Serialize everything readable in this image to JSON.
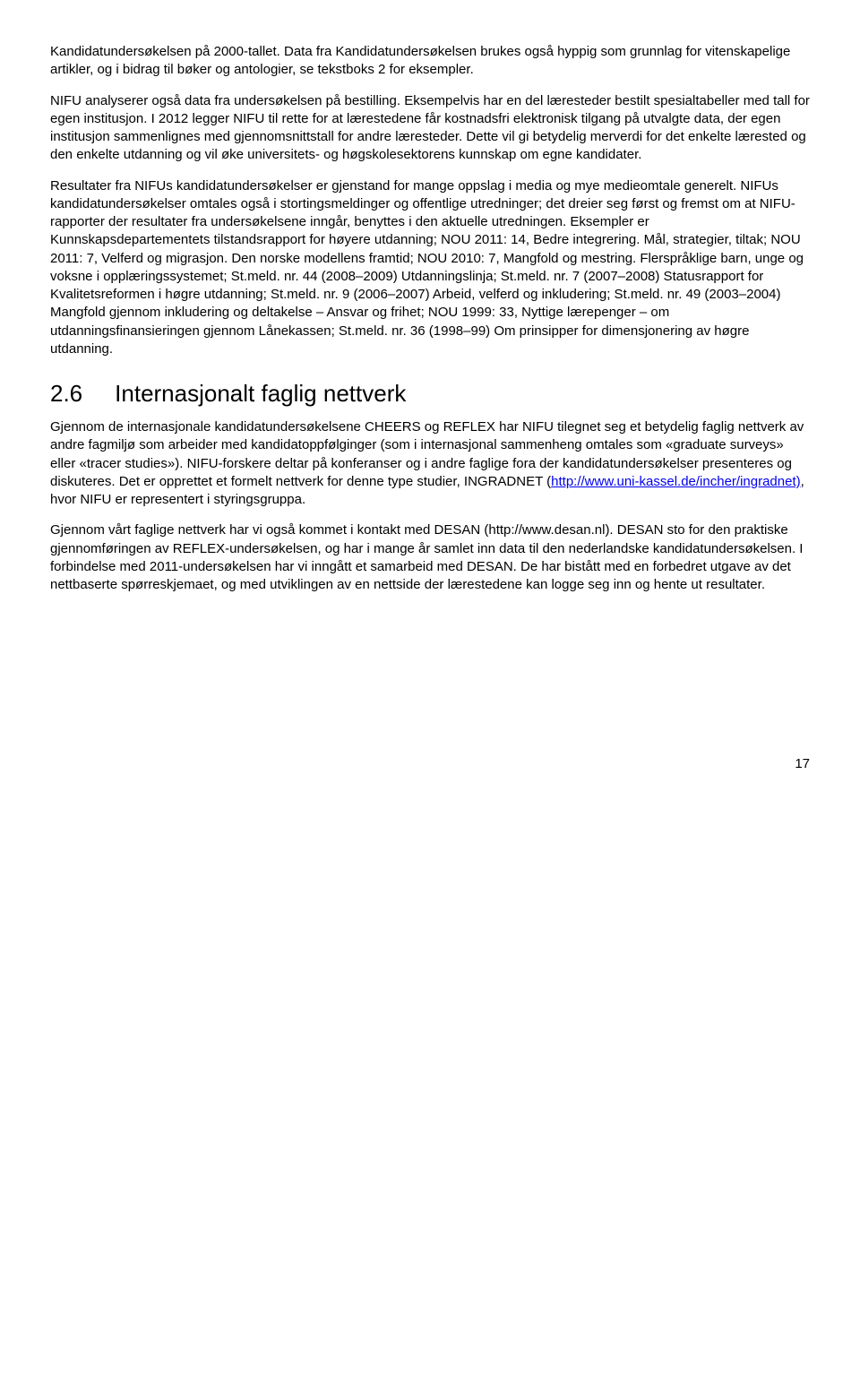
{
  "paragraphs": {
    "p1": "Kandidatundersøkelsen på 2000-tallet. Data fra Kandidatundersøkelsen brukes også hyppig som grunnlag for vitenskapelige artikler, og i bidrag til bøker og antologier, se tekstboks 2 for eksempler.",
    "p2": "NIFU analyserer også data fra undersøkelsen på bestilling. Eksempelvis har en del læresteder bestilt spesialtabeller med tall for egen institusjon. I 2012 legger NIFU til rette for at lærestedene får kostnadsfri elektronisk tilgang på utvalgte data, der egen institusjon sammenlignes med gjennomsnittstall for andre læresteder. Dette vil gi betydelig merverdi for det enkelte lærested og den enkelte utdanning og vil øke universitets- og høgskolesektorens kunnskap om egne kandidater.",
    "p3": "Resultater fra NIFUs kandidatundersøkelser er gjenstand for mange oppslag i media og mye medieomtale generelt. NIFUs kandidatundersøkelser omtales også i stortingsmeldinger og offentlige utredninger; det dreier seg først og fremst om at NIFU-rapporter der resultater fra undersøkelsene inngår, benyttes i den aktuelle utredningen. Eksempler er Kunnskapsdepartementets tilstandsrapport for høyere utdanning; NOU 2011: 14, Bedre integrering. Mål, strategier, tiltak; NOU 2011: 7, Velferd og migrasjon. Den norske modellens framtid; NOU 2010: 7, Mangfold og mestring. Flerspråklige barn, unge og voksne i opplæringssystemet; St.meld. nr. 44 (2008–2009) Utdanningslinja; St.meld. nr. 7 (2007–2008) Statusrapport for Kvalitetsreformen i høgre utdanning; St.meld. nr. 9 (2006–2007) Arbeid, velferd og inkludering; St.meld. nr. 49 (2003–2004) Mangfold gjennom inkludering og deltakelse – Ansvar og frihet; NOU 1999: 33, Nyttige lærepenger – om utdanningsfinansieringen gjennom Lånekassen; St.meld. nr. 36 (1998–99) Om prinsipper for dimensjonering av høgre utdanning."
  },
  "heading": {
    "number": "2.6",
    "title": "Internasjonalt faglig nettverk"
  },
  "section2": {
    "p4_pre": "Gjennom de internasjonale kandidatundersøkelsene CHEERS og REFLEX har NIFU tilegnet seg et betydelig faglig nettverk av andre fagmiljø som arbeider med kandidatoppfølginger (som i internasjonal sammenheng omtales som «graduate surveys» eller «tracer studies»). NIFU-forskere deltar på konferanser og i andre faglige fora der kandidatundersøkelser presenteres og diskuteres. Det er opprettet et formelt nettverk for denne type studier, INGRADNET (",
    "link1_text": "http://www.uni-kassel.de/incher/ingradnet)",
    "p4_post": ", hvor NIFU er representert i styringsgruppa.",
    "p5": "Gjennom vårt faglige nettverk har vi også kommet i kontakt med DESAN (http://www.desan.nl). DESAN sto for den praktiske gjennomføringen av REFLEX-undersøkelsen, og har i mange år samlet inn data til den nederlandske kandidatundersøkelsen. I forbindelse med 2011-undersøkelsen har vi inngått et samarbeid med DESAN. De har bistått med en forbedret utgave av det nettbaserte spørreskjemaet, og med utviklingen av en nettside der lærestedene kan logge seg inn og hente ut resultater."
  },
  "pageNumber": "17"
}
